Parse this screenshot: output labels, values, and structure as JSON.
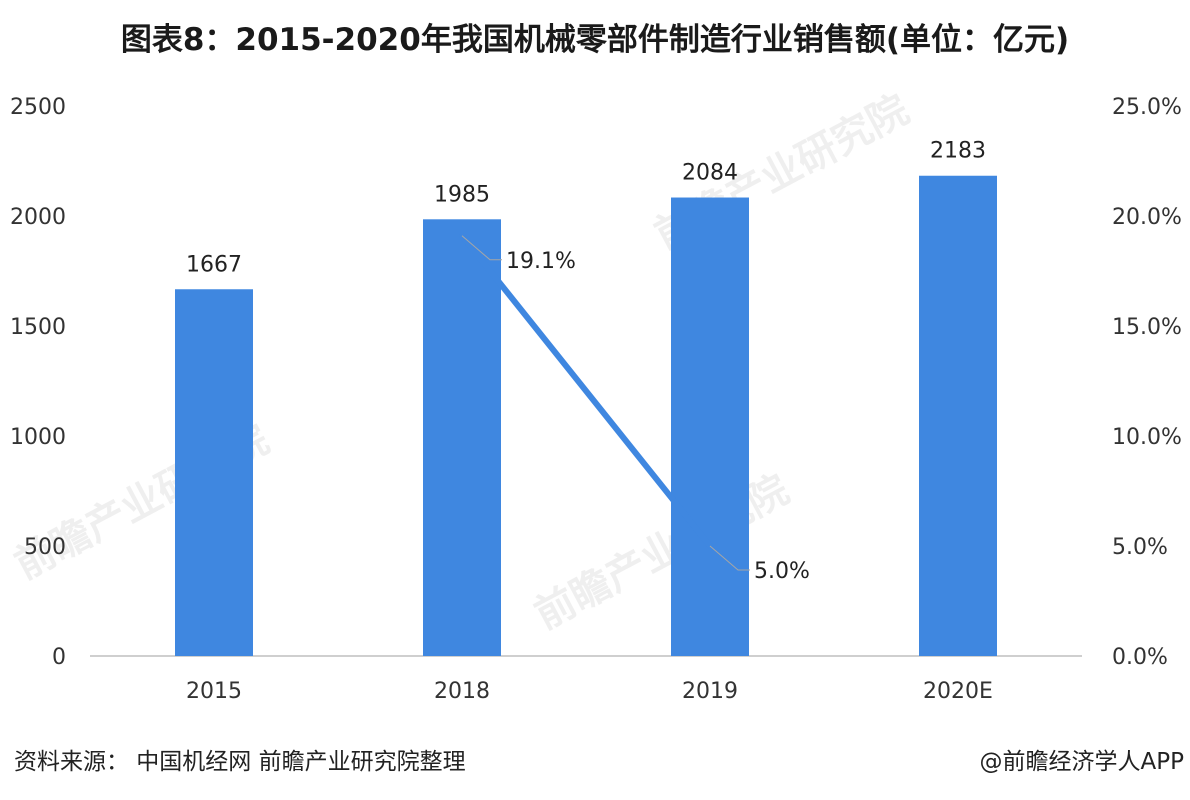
{
  "title": "图表8：2015-2020年我国机械零部件制造行业销售额(单位：亿元)",
  "source": "资料来源：  中国机经网 前瞻产业研究院整理",
  "credit": "@前瞻经济学人APP",
  "watermark": "前瞻产业研究院",
  "colors": {
    "bar": "#3f87e0",
    "line": "#3f87e0",
    "axis": "#bfbfbf",
    "text": "#333333"
  },
  "chart_data": {
    "type": "bar",
    "categories": [
      "2015",
      "2018",
      "2019",
      "2020E"
    ],
    "series": [
      {
        "type": "bar",
        "values": [
          1667,
          1985,
          2084,
          2183
        ],
        "labels": [
          "1667",
          "1985",
          "2084",
          "2183"
        ],
        "axis": "left"
      },
      {
        "type": "line",
        "points": [
          {
            "category": "2018",
            "value": 19.1,
            "label": "19.1%"
          },
          {
            "category": "2019",
            "value": 5.0,
            "label": "5.0%"
          }
        ],
        "axis": "right"
      }
    ],
    "y_left": {
      "min": 0,
      "max": 2500,
      "ticks": [
        "0",
        "500",
        "1000",
        "1500",
        "2000",
        "2500"
      ]
    },
    "y_right": {
      "min": 0,
      "max": 25,
      "ticks": [
        "0.0%",
        "5.0%",
        "10.0%",
        "15.0%",
        "20.0%",
        "25.0%"
      ]
    },
    "grid": false
  }
}
